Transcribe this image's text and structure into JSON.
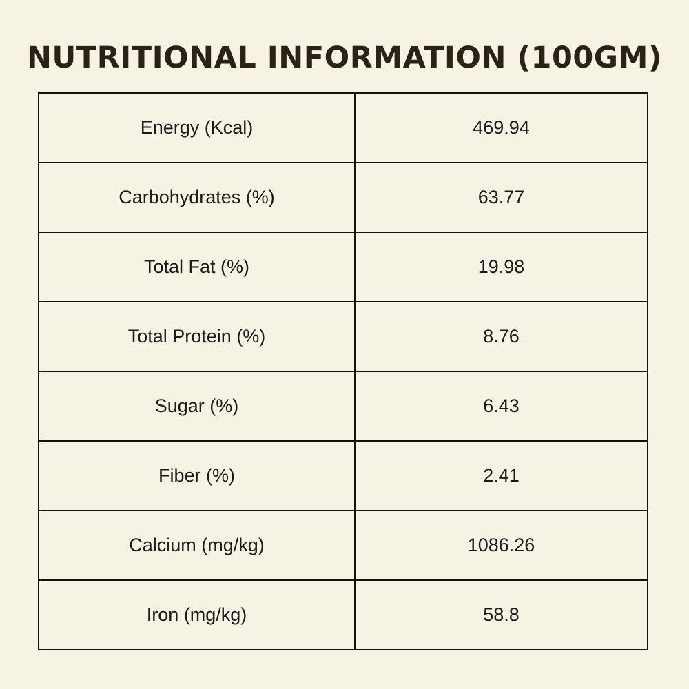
{
  "title": "NUTRITIONAL INFORMATION (100GM)",
  "rows": [
    {
      "label": "Energy (Kcal)",
      "value": "469.94"
    },
    {
      "label": "Carbohydrates (%)",
      "value": "63.77"
    },
    {
      "label": "Total Fat (%)",
      "value": "19.98"
    },
    {
      "label": "Total Protein (%)",
      "value": "8.76"
    },
    {
      "label": "Sugar (%)",
      "value": "6.43"
    },
    {
      "label": "Fiber (%)",
      "value": "2.41"
    },
    {
      "label": "Calcium (mg/kg)",
      "value": "1086.26"
    },
    {
      "label": "Iron (mg/kg)",
      "value": "58.8"
    }
  ],
  "colors": {
    "background": "#f6f3e4",
    "title_text": "#2b2116",
    "border": "#111111",
    "cell_text": "#1a1a1a"
  }
}
